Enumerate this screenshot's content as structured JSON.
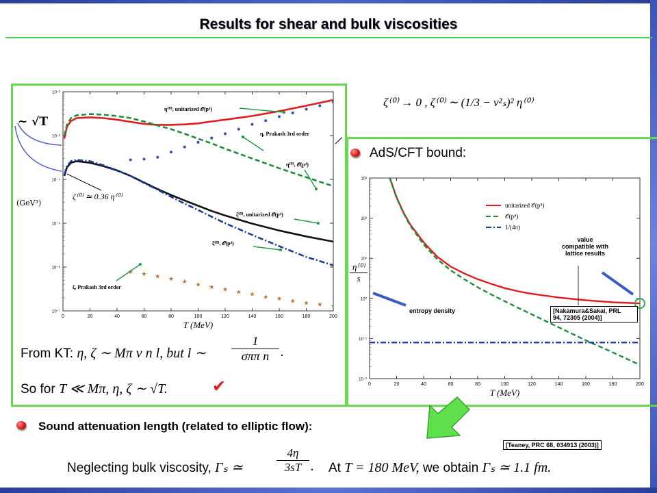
{
  "slide": {
    "title": "Results for shear and bulk viscosities",
    "colors": {
      "frame": "#66d94f",
      "accent_blue": "#2a3f9a",
      "red": "#e21b1b",
      "green": "#1e8c3a",
      "blue": "#1c3c99",
      "gold": "#b3742a"
    }
  },
  "left_panel": {
    "sqrtT_label": "~ √T",
    "ylabel": "(GeV³)",
    "zeta_ratio": "ζ⁽⁰⁾ ≃ 0.36 η⁽⁰⁾",
    "from_kt_prefix": "From KT:",
    "from_kt_math": "η, ζ ∼ Mπ v n l, but l ∼",
    "from_kt_frac_num": "1",
    "from_kt_frac_den": "σππ n",
    "so_for_prefix": "So for",
    "so_for_math": "T ≪ Mπ, η, ζ ∼ √T.",
    "checkmark": "✔"
  },
  "right_panel": {
    "bullet_heading": "AdS/CFT bound:",
    "formula_top": "ζ⁽⁰⁾ → 0 ,   ζ⁽⁰⁾ ∼ (1/3 − v²ₛ)² η⁽⁰⁾",
    "ylabel_num": "η⁽⁰⁾",
    "ylabel_den": "s",
    "entropy_label": "entropy density",
    "value_note": "value\ncompatible with\nlattice results",
    "ref_nakamura": "[Nakamura&Sakai, PRL\n94, 72305 (2004)]"
  },
  "bottom": {
    "sound_heading": "Sound attenuation length (related to elliptic flow):",
    "ref_teaney": "[Teaney, PRC 68, 034913 (2003)]",
    "neglect_prefix": "Neglecting bulk viscosity,",
    "neglect_math_lhs": "Γₛ ≃",
    "neglect_frac_num": "4η",
    "neglect_frac_den": "3sT",
    "obtain_prefix": "At",
    "obtain_math": "T = 180 MeV,",
    "obtain_mid": "we obtain",
    "obtain_result": "Γₛ ≃ 1.1 fm."
  },
  "chart_data": [
    {
      "type": "line",
      "title": "",
      "xlabel": "T (MeV)",
      "ylabel": "(GeV³)",
      "xlim": [
        0,
        200
      ],
      "ylim_log10": [
        -7,
        -2
      ],
      "yscale": "log",
      "x_ticks": [
        0,
        20,
        40,
        60,
        80,
        100,
        120,
        140,
        160,
        180,
        200
      ],
      "y_ticks": [
        "10⁻⁷",
        "10⁻⁶",
        "10⁻⁵",
        "10⁻⁴",
        "10⁻³",
        "10⁻²"
      ],
      "series": [
        {
          "name": "η⁽⁰⁾, unitarized 𝒪(p⁴)",
          "style": "solid",
          "color": "#e21b1b",
          "x": [
            1,
            3,
            6,
            10,
            20,
            30,
            40,
            50,
            60,
            70,
            80,
            90,
            100,
            110,
            120,
            140,
            160,
            180,
            200
          ],
          "y": [
            0.00085,
            0.0016,
            0.00215,
            0.0025,
            0.0026,
            0.0025,
            0.0023,
            0.00205,
            0.00185,
            0.00175,
            0.00175,
            0.0018,
            0.0019,
            0.0021,
            0.0023,
            0.0028,
            0.0036,
            0.0048,
            0.0065
          ]
        },
        {
          "name": "η⁽⁰⁾, 𝒪(p⁴)",
          "style": "dashed",
          "color": "#1e8c3a",
          "x": [
            1,
            3,
            6,
            10,
            20,
            30,
            40,
            50,
            60,
            70,
            80,
            90,
            100,
            110,
            120,
            140,
            160,
            180,
            200
          ],
          "y": [
            0.001,
            0.0018,
            0.0025,
            0.0029,
            0.0031,
            0.003,
            0.0028,
            0.0025,
            0.0021,
            0.0017,
            0.0014,
            0.0011,
            0.00085,
            0.00066,
            0.0005,
            0.0003,
            0.00018,
            0.000112,
            7e-05
          ]
        },
        {
          "name": "η, Prakash 3rd order",
          "style": "dots",
          "color": "#2c4fb5",
          "x": [
            50,
            60,
            70,
            80,
            90,
            100,
            110,
            120,
            130,
            140,
            150,
            160,
            170,
            180,
            190,
            200
          ],
          "y": [
            0.00028,
            0.00029,
            0.00032,
            0.00042,
            0.00055,
            0.0007,
            0.00088,
            0.0011,
            0.0014,
            0.0018,
            0.0022,
            0.0027,
            0.0033,
            0.004,
            0.0048,
            0.0058
          ]
        },
        {
          "name": "ζ⁽⁰⁾, unitarized 𝒪(p⁴)",
          "style": "solid",
          "color": "#111111",
          "x": [
            1,
            3,
            6,
            10,
            20,
            30,
            40,
            50,
            60,
            70,
            80,
            90,
            100,
            110,
            120,
            140,
            160,
            180,
            200
          ],
          "y": [
            0.00012,
            0.00019,
            0.00024,
            0.00026,
            0.00024,
            0.0002,
            0.00016,
            0.00012,
            8.5e-05,
            6e-05,
            4.4e-05,
            3.3e-05,
            2.5e-05,
            1.9e-05,
            1.5e-05,
            9.8e-06,
            6.8e-06,
            5e-06,
            3.8e-06
          ]
        },
        {
          "name": "ζ⁽⁰⁾, 𝒪(p⁴)",
          "style": "dashdot",
          "color": "#1c3c99",
          "x": [
            1,
            3,
            6,
            10,
            20,
            30,
            40,
            50,
            60,
            70,
            80,
            90,
            100,
            110,
            120,
            140,
            160,
            180,
            200
          ],
          "y": [
            0.00013,
            0.0002,
            0.00026,
            0.00028,
            0.00026,
            0.00021,
            0.00016,
            0.00012,
            8.3e-05,
            5.8e-05,
            4e-05,
            2.8e-05,
            2e-05,
            1.4e-05,
            1e-05,
            5.4e-06,
            3e-06,
            1.7e-06,
            1.1e-06
          ]
        },
        {
          "name": "ζ, Prakash 3rd order",
          "style": "stars",
          "color": "#b3742a",
          "x": [
            50,
            60,
            70,
            80,
            90,
            100,
            110,
            120,
            130,
            140,
            150,
            160,
            170,
            180,
            190,
            200
          ],
          "y": [
            7.8e-07,
            7e-07,
            6.2e-07,
            5.4e-07,
            4.7e-07,
            4e-07,
            3.5e-07,
            3.1e-07,
            2.7e-07,
            2.4e-07,
            2.1e-07,
            1.9e-07,
            1.7e-07,
            1.5e-07,
            1.4e-07,
            1.3e-07
          ]
        }
      ],
      "annotations": [
        "η⁽⁰⁾, unitarized 𝒪(p⁴)",
        "η, Prakash 3rd order",
        "η⁽⁰⁾, 𝒪(p⁴)",
        "ζ⁽⁰⁾, unitarized 𝒪(p⁴)",
        "ζ⁽⁰⁾, 𝒪(p⁴)",
        "ζ, Prakash 3rd order"
      ]
    },
    {
      "type": "line",
      "title": "",
      "xlabel": "T (MeV)",
      "ylabel": "η⁽⁰⁾/s",
      "xlim": [
        0,
        200
      ],
      "ylim_log10": [
        -2,
        3
      ],
      "yscale": "log",
      "x_ticks": [
        0,
        20,
        40,
        60,
        80,
        100,
        120,
        140,
        160,
        180,
        200
      ],
      "y_ticks": [
        "10⁻²",
        "10⁻¹",
        "10⁰",
        "10¹",
        "10²",
        "10³"
      ],
      "legend": "top-right",
      "series": [
        {
          "name": "unitarized 𝒪(p⁴)",
          "style": "solid",
          "color": "#e21b1b",
          "x": [
            15,
            20,
            25,
            30,
            40,
            50,
            60,
            70,
            80,
            90,
            100,
            110,
            120,
            140,
            160,
            180,
            200
          ],
          "y": [
            1000,
            330,
            140,
            70,
            25,
            11,
            6.2,
            4.2,
            3.0,
            2.3,
            1.8,
            1.5,
            1.3,
            1.05,
            0.9,
            0.8,
            0.75
          ]
        },
        {
          "name": "𝒪(p⁴)",
          "style": "dashed",
          "color": "#1e8c3a",
          "x": [
            15,
            20,
            25,
            30,
            40,
            50,
            60,
            70,
            80,
            90,
            100,
            110,
            120,
            140,
            160,
            180,
            200
          ],
          "y": [
            1000,
            320,
            135,
            66,
            22,
            9.5,
            5.0,
            3.0,
            1.9,
            1.25,
            0.85,
            0.58,
            0.4,
            0.19,
            0.09,
            0.045,
            0.022
          ]
        },
        {
          "name": "1/(4π)",
          "style": "dashdot",
          "color": "#1c3c99",
          "x": [
            0,
            200
          ],
          "y": [
            0.0796,
            0.0796
          ]
        }
      ]
    }
  ]
}
